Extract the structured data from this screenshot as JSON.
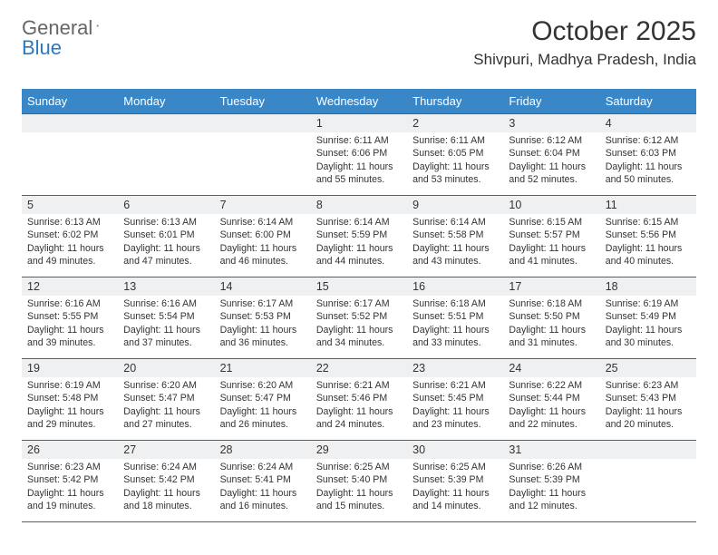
{
  "brand": {
    "part1": "General",
    "part2": "Blue"
  },
  "title": {
    "month": "October 2025",
    "location": "Shivpuri, Madhya Pradesh, India"
  },
  "day_headers": [
    "Sunday",
    "Monday",
    "Tuesday",
    "Wednesday",
    "Thursday",
    "Friday",
    "Saturday"
  ],
  "colors": {
    "header_bg": "#3a87c8",
    "header_text": "#ffffff",
    "rule": "#2a6aa3",
    "daynum_bg": "#eef0f1",
    "text": "#333333",
    "brand_blue": "#2a79c0",
    "brand_gray": "#666666"
  },
  "weeks": [
    [
      {
        "n": "",
        "sr": "",
        "ss": "",
        "dl": ""
      },
      {
        "n": "",
        "sr": "",
        "ss": "",
        "dl": ""
      },
      {
        "n": "",
        "sr": "",
        "ss": "",
        "dl": ""
      },
      {
        "n": "1",
        "sr": "Sunrise: 6:11 AM",
        "ss": "Sunset: 6:06 PM",
        "dl": "Daylight: 11 hours and 55 minutes."
      },
      {
        "n": "2",
        "sr": "Sunrise: 6:11 AM",
        "ss": "Sunset: 6:05 PM",
        "dl": "Daylight: 11 hours and 53 minutes."
      },
      {
        "n": "3",
        "sr": "Sunrise: 6:12 AM",
        "ss": "Sunset: 6:04 PM",
        "dl": "Daylight: 11 hours and 52 minutes."
      },
      {
        "n": "4",
        "sr": "Sunrise: 6:12 AM",
        "ss": "Sunset: 6:03 PM",
        "dl": "Daylight: 11 hours and 50 minutes."
      }
    ],
    [
      {
        "n": "5",
        "sr": "Sunrise: 6:13 AM",
        "ss": "Sunset: 6:02 PM",
        "dl": "Daylight: 11 hours and 49 minutes."
      },
      {
        "n": "6",
        "sr": "Sunrise: 6:13 AM",
        "ss": "Sunset: 6:01 PM",
        "dl": "Daylight: 11 hours and 47 minutes."
      },
      {
        "n": "7",
        "sr": "Sunrise: 6:14 AM",
        "ss": "Sunset: 6:00 PM",
        "dl": "Daylight: 11 hours and 46 minutes."
      },
      {
        "n": "8",
        "sr": "Sunrise: 6:14 AM",
        "ss": "Sunset: 5:59 PM",
        "dl": "Daylight: 11 hours and 44 minutes."
      },
      {
        "n": "9",
        "sr": "Sunrise: 6:14 AM",
        "ss": "Sunset: 5:58 PM",
        "dl": "Daylight: 11 hours and 43 minutes."
      },
      {
        "n": "10",
        "sr": "Sunrise: 6:15 AM",
        "ss": "Sunset: 5:57 PM",
        "dl": "Daylight: 11 hours and 41 minutes."
      },
      {
        "n": "11",
        "sr": "Sunrise: 6:15 AM",
        "ss": "Sunset: 5:56 PM",
        "dl": "Daylight: 11 hours and 40 minutes."
      }
    ],
    [
      {
        "n": "12",
        "sr": "Sunrise: 6:16 AM",
        "ss": "Sunset: 5:55 PM",
        "dl": "Daylight: 11 hours and 39 minutes."
      },
      {
        "n": "13",
        "sr": "Sunrise: 6:16 AM",
        "ss": "Sunset: 5:54 PM",
        "dl": "Daylight: 11 hours and 37 minutes."
      },
      {
        "n": "14",
        "sr": "Sunrise: 6:17 AM",
        "ss": "Sunset: 5:53 PM",
        "dl": "Daylight: 11 hours and 36 minutes."
      },
      {
        "n": "15",
        "sr": "Sunrise: 6:17 AM",
        "ss": "Sunset: 5:52 PM",
        "dl": "Daylight: 11 hours and 34 minutes."
      },
      {
        "n": "16",
        "sr": "Sunrise: 6:18 AM",
        "ss": "Sunset: 5:51 PM",
        "dl": "Daylight: 11 hours and 33 minutes."
      },
      {
        "n": "17",
        "sr": "Sunrise: 6:18 AM",
        "ss": "Sunset: 5:50 PM",
        "dl": "Daylight: 11 hours and 31 minutes."
      },
      {
        "n": "18",
        "sr": "Sunrise: 6:19 AM",
        "ss": "Sunset: 5:49 PM",
        "dl": "Daylight: 11 hours and 30 minutes."
      }
    ],
    [
      {
        "n": "19",
        "sr": "Sunrise: 6:19 AM",
        "ss": "Sunset: 5:48 PM",
        "dl": "Daylight: 11 hours and 29 minutes."
      },
      {
        "n": "20",
        "sr": "Sunrise: 6:20 AM",
        "ss": "Sunset: 5:47 PM",
        "dl": "Daylight: 11 hours and 27 minutes."
      },
      {
        "n": "21",
        "sr": "Sunrise: 6:20 AM",
        "ss": "Sunset: 5:47 PM",
        "dl": "Daylight: 11 hours and 26 minutes."
      },
      {
        "n": "22",
        "sr": "Sunrise: 6:21 AM",
        "ss": "Sunset: 5:46 PM",
        "dl": "Daylight: 11 hours and 24 minutes."
      },
      {
        "n": "23",
        "sr": "Sunrise: 6:21 AM",
        "ss": "Sunset: 5:45 PM",
        "dl": "Daylight: 11 hours and 23 minutes."
      },
      {
        "n": "24",
        "sr": "Sunrise: 6:22 AM",
        "ss": "Sunset: 5:44 PM",
        "dl": "Daylight: 11 hours and 22 minutes."
      },
      {
        "n": "25",
        "sr": "Sunrise: 6:23 AM",
        "ss": "Sunset: 5:43 PM",
        "dl": "Daylight: 11 hours and 20 minutes."
      }
    ],
    [
      {
        "n": "26",
        "sr": "Sunrise: 6:23 AM",
        "ss": "Sunset: 5:42 PM",
        "dl": "Daylight: 11 hours and 19 minutes."
      },
      {
        "n": "27",
        "sr": "Sunrise: 6:24 AM",
        "ss": "Sunset: 5:42 PM",
        "dl": "Daylight: 11 hours and 18 minutes."
      },
      {
        "n": "28",
        "sr": "Sunrise: 6:24 AM",
        "ss": "Sunset: 5:41 PM",
        "dl": "Daylight: 11 hours and 16 minutes."
      },
      {
        "n": "29",
        "sr": "Sunrise: 6:25 AM",
        "ss": "Sunset: 5:40 PM",
        "dl": "Daylight: 11 hours and 15 minutes."
      },
      {
        "n": "30",
        "sr": "Sunrise: 6:25 AM",
        "ss": "Sunset: 5:39 PM",
        "dl": "Daylight: 11 hours and 14 minutes."
      },
      {
        "n": "31",
        "sr": "Sunrise: 6:26 AM",
        "ss": "Sunset: 5:39 PM",
        "dl": "Daylight: 11 hours and 12 minutes."
      },
      {
        "n": "",
        "sr": "",
        "ss": "",
        "dl": ""
      }
    ]
  ]
}
